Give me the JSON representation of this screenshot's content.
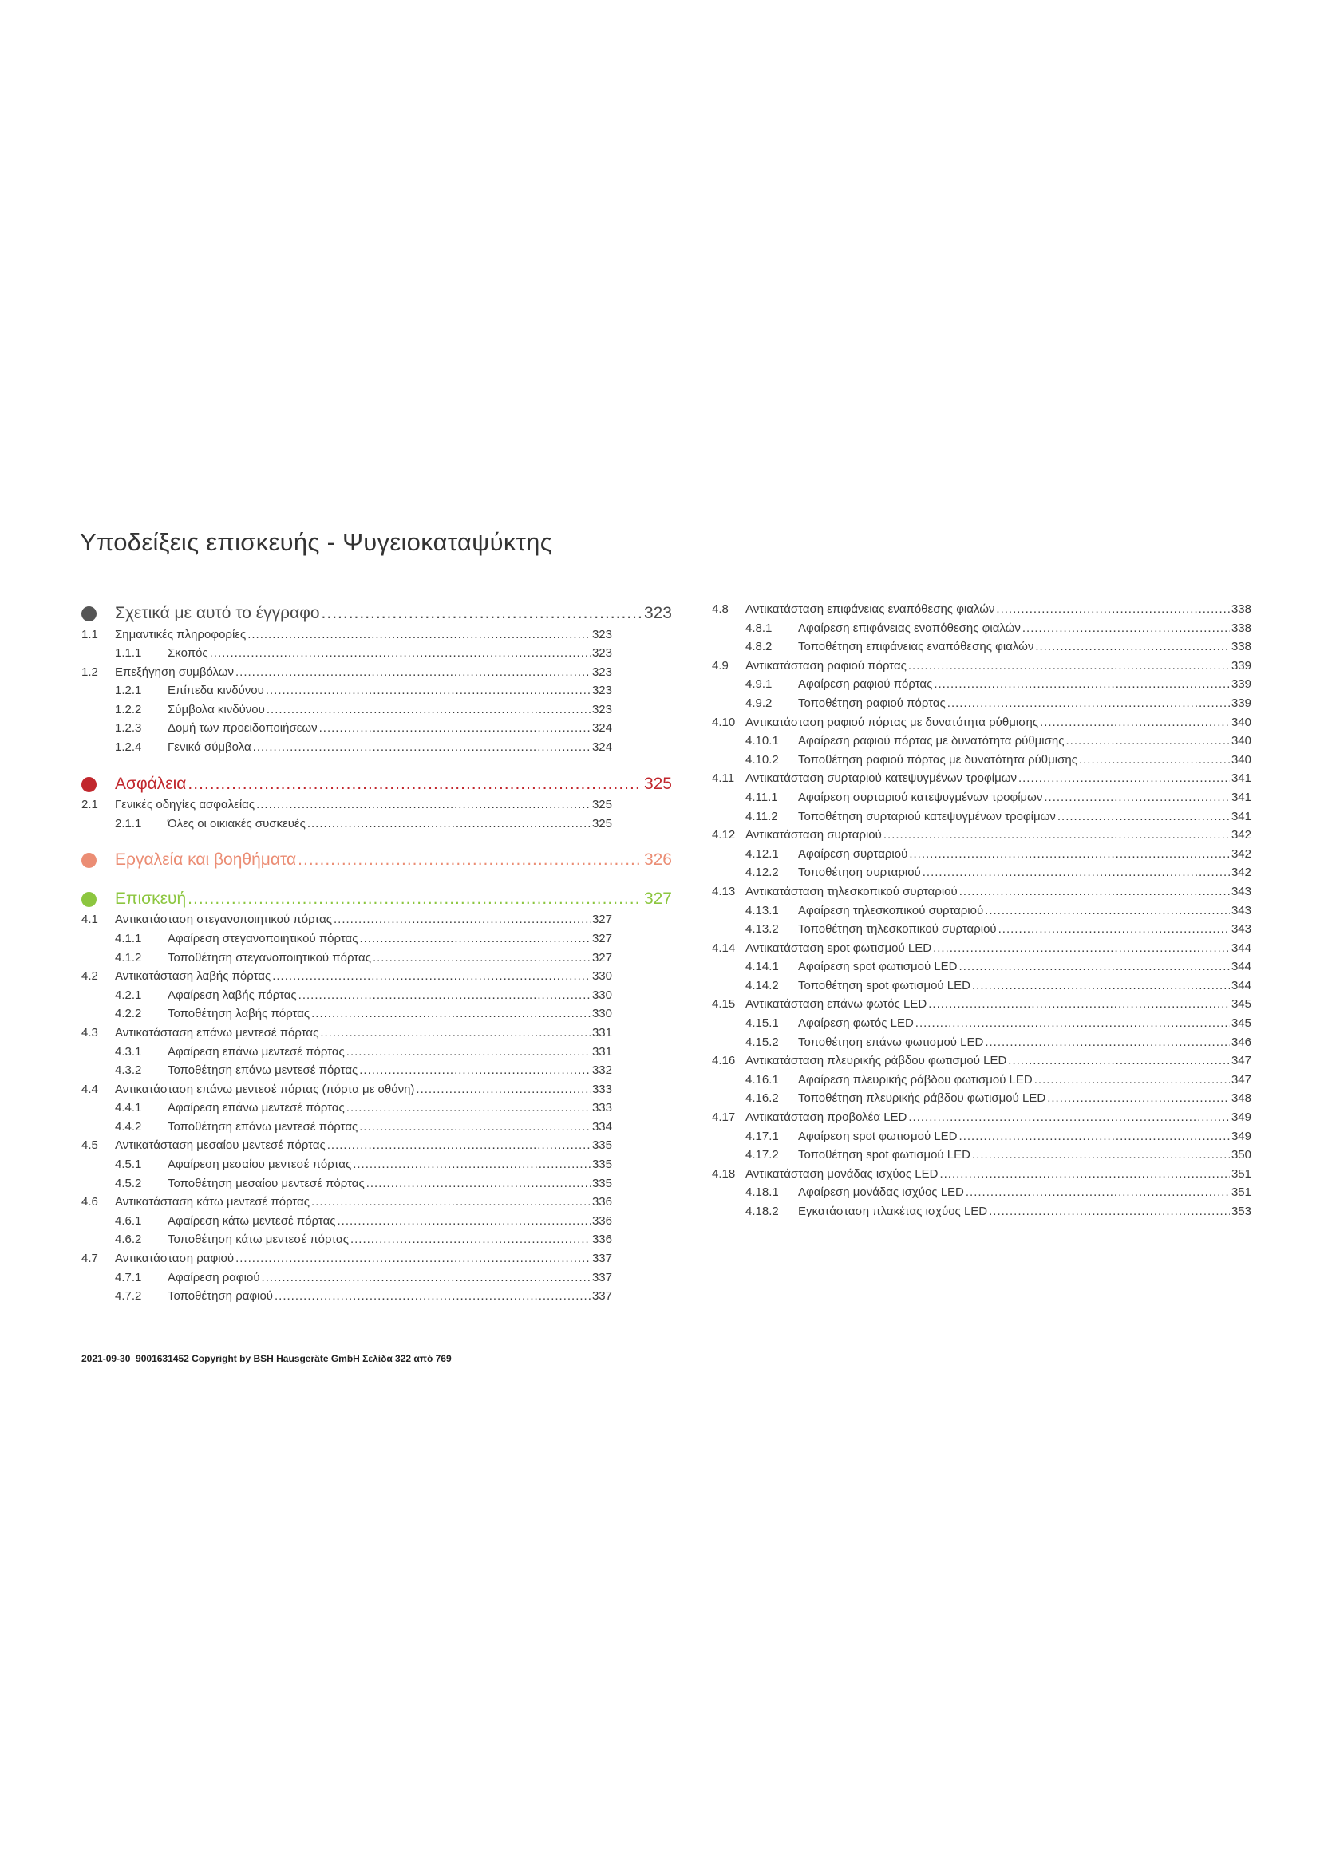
{
  "title": "Υποδείξεις επισκευής - Ψυγειοκαταψύκτης",
  "left": [
    {
      "heading": "Σχετικά με αυτό το έγγραφο",
      "page": 323
    },
    {
      "num": "1.1",
      "text": "Σημαντικές πληροφορίες",
      "page": 323
    },
    {
      "num": "1.1.1",
      "text": "Σκοπός",
      "page": 323
    },
    {
      "num": "1.2",
      "text": "Επεξήγηση συμβόλων",
      "page": 323
    },
    {
      "num": "1.2.1",
      "text": "Επίπεδα κινδύνου",
      "page": 323
    },
    {
      "num": "1.2.2",
      "text": "Σύμβολα κινδύνου",
      "page": 323
    },
    {
      "num": "1.2.3",
      "text": "Δομή των προειδοποιήσεων",
      "page": 324
    },
    {
      "num": "1.2.4",
      "text": "Γενικά σύμβολα",
      "page": 324
    },
    {
      "heading": "Ασφάλεια",
      "page": 325
    },
    {
      "num": "2.1",
      "text": "Γενικές οδηγίες ασφαλείας",
      "page": 325
    },
    {
      "num": "2.1.1",
      "text": "Όλες οι οικιακές συσκευές",
      "page": 325
    },
    {
      "heading": "Εργαλεία και βοηθήματα",
      "page": 326
    },
    {
      "heading": "Επισκευή",
      "page": 327
    },
    {
      "num": "4.1",
      "text": "Αντικατάσταση στεγανοποιητικού πόρτας",
      "page": 327
    },
    {
      "num": "4.1.1",
      "text": "Αφαίρεση στεγανοποιητικού πόρτας",
      "page": 327
    },
    {
      "num": "4.1.2",
      "text": "Τοποθέτηση στεγανοποιητικού πόρτας",
      "page": 327
    },
    {
      "num": "4.2",
      "text": "Αντικατάσταση λαβής πόρτας",
      "page": 330
    },
    {
      "num": "4.2.1",
      "text": "Αφαίρεση λαβής πόρτας",
      "page": 330
    },
    {
      "num": "4.2.2",
      "text": "Τοποθέτηση λαβής πόρτας",
      "page": 330
    },
    {
      "num": "4.3",
      "text": "Αντικατάσταση επάνω μεντεσέ πόρτας",
      "page": 331
    },
    {
      "num": "4.3.1",
      "text": "Αφαίρεση επάνω μεντεσέ πόρτας",
      "page": 331
    },
    {
      "num": "4.3.2",
      "text": "Τοποθέτηση επάνω μεντεσέ πόρτας",
      "page": 332
    },
    {
      "num": "4.4",
      "text": "Αντικατάσταση επάνω μεντεσέ πόρτας (πόρτα με οθόνη)",
      "page": 333
    },
    {
      "num": "4.4.1",
      "text": "Αφαίρεση επάνω μεντεσέ πόρτας",
      "page": 333
    },
    {
      "num": "4.4.2",
      "text": "Τοποθέτηση επάνω μεντεσέ πόρτας",
      "page": 334
    },
    {
      "num": "4.5",
      "text": "Αντικατάσταση μεσαίου μεντεσέ πόρτας",
      "page": 335
    },
    {
      "num": "4.5.1",
      "text": "Αφαίρεση μεσαίου μεντεσέ πόρτας",
      "page": 335
    },
    {
      "num": "4.5.2",
      "text": "Τοποθέτηση μεσαίου μεντεσέ πόρτας",
      "page": 335
    },
    {
      "num": "4.6",
      "text": "Αντικατάσταση κάτω μεντεσέ πόρτας",
      "page": 336
    },
    {
      "num": "4.6.1",
      "text": "Αφαίρεση κάτω μεντεσέ πόρτας",
      "page": 336
    },
    {
      "num": "4.6.2",
      "text": "Τοποθέτηση κάτω μεντεσέ πόρτας",
      "page": 336
    },
    {
      "num": "4.7",
      "text": "Αντικατάσταση ραφιού",
      "page": 337
    },
    {
      "num": "4.7.1",
      "text": "Αφαίρεση ραφιού",
      "page": 337
    },
    {
      "num": "4.7.2",
      "text": "Τοποθέτηση ραφιού",
      "page": 337
    }
  ],
  "right": [
    {
      "num": "4.8",
      "text": "Αντικατάσταση επιφάνειας εναπόθεσης φιαλών",
      "page": 338
    },
    {
      "num": "4.8.1",
      "text": "Αφαίρεση επιφάνειας εναπόθεσης φιαλών",
      "page": 338
    },
    {
      "num": "4.8.2",
      "text": "Τοποθέτηση επιφάνειας εναπόθεσης φιαλών",
      "page": 338
    },
    {
      "num": "4.9",
      "text": "Αντικατάσταση ραφιού πόρτας",
      "page": 339
    },
    {
      "num": "4.9.1",
      "text": "Αφαίρεση ραφιού πόρτας",
      "page": 339
    },
    {
      "num": "4.9.2",
      "text": "Τοποθέτηση ραφιού πόρτας",
      "page": 339
    },
    {
      "num": "4.10",
      "text": "Αντικατάσταση ραφιού πόρτας με δυνατότητα ρύθμισης",
      "page": 340
    },
    {
      "num": "4.10.1",
      "text": "Αφαίρεση ραφιού πόρτας με δυνατότητα ρύθμισης",
      "page": 340
    },
    {
      "num": "4.10.2",
      "text": "Τοποθέτηση ραφιού πόρτας με δυνατότητα ρύθμισης",
      "page": 340
    },
    {
      "num": "4.11",
      "text": "Αντικατάσταση συρταριού κατεψυγμένων τροφίμων",
      "page": 341
    },
    {
      "num": "4.11.1",
      "text": "Αφαίρεση συρταριού κατεψυγμένων τροφίμων",
      "page": 341
    },
    {
      "num": "4.11.2",
      "text": "Τοποθέτηση συρταριού κατεψυγμένων τροφίμων",
      "page": 341
    },
    {
      "num": "4.12",
      "text": "Αντικατάσταση συρταριού",
      "page": 342
    },
    {
      "num": "4.12.1",
      "text": "Αφαίρεση συρταριού",
      "page": 342
    },
    {
      "num": "4.12.2",
      "text": "Τοποθέτηση συρταριού",
      "page": 342
    },
    {
      "num": "4.13",
      "text": "Αντικατάσταση τηλεσκοπικού συρταριού",
      "page": 343
    },
    {
      "num": "4.13.1",
      "text": "Αφαίρεση τηλεσκοπικού συρταριού",
      "page": 343
    },
    {
      "num": "4.13.2",
      "text": "Τοποθέτηση τηλεσκοπικού συρταριού",
      "page": 343
    },
    {
      "num": "4.14",
      "text": "Αντικατάσταση spot φωτισμού LED",
      "page": 344
    },
    {
      "num": "4.14.1",
      "text": "Αφαίρεση spot φωτισμού LED",
      "page": 344
    },
    {
      "num": "4.14.2",
      "text": "Τοποθέτηση spot φωτισμού LED",
      "page": 344
    },
    {
      "num": "4.15",
      "text": "Αντικατάσταση επάνω φωτός LED",
      "page": 345
    },
    {
      "num": "4.15.1",
      "text": "Αφαίρεση φωτός LED",
      "page": 345
    },
    {
      "num": "4.15.2",
      "text": "Τοποθέτηση επάνω φωτισμού LED",
      "page": 346
    },
    {
      "num": "4.16",
      "text": "Αντικατάσταση πλευρικής ράβδου φωτισμού LED",
      "page": 347
    },
    {
      "num": "4.16.1",
      "text": "Αφαίρεση πλευρικής ράβδου φωτισμού LED",
      "page": 347
    },
    {
      "num": "4.16.2",
      "text": "Τοποθέτηση πλευρικής ράβδου φωτισμού LED",
      "page": 348
    },
    {
      "num": "4.17",
      "text": "Αντικατάσταση προβολέα LED",
      "page": 349
    },
    {
      "num": "4.17.1",
      "text": "Αφαίρεση spot φωτισμού LED",
      "page": 349
    },
    {
      "num": "4.17.2",
      "text": "Τοποθέτηση spot φωτισμού LED",
      "page": 350
    },
    {
      "num": "4.18",
      "text": "Αντικατάσταση μονάδας ισχύος LED",
      "page": 351
    },
    {
      "num": "4.18.1",
      "text": "Αφαίρεση μονάδας ισχύος LED",
      "page": 351
    },
    {
      "num": "4.18.2",
      "text": "Εγκατάσταση πλακέτας ισχύος LED",
      "page": 353
    }
  ],
  "footer": "2021-09-30_9001631452 Copyright by BSH Hausgeräte GmbH Σελίδα 322 από 769"
}
